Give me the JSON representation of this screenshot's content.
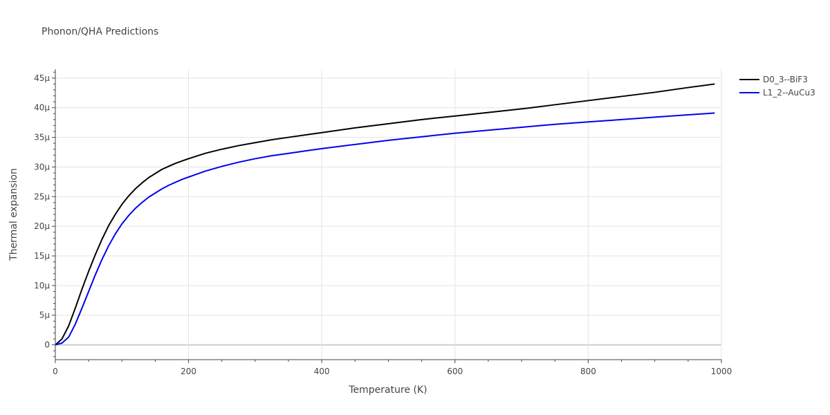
{
  "chart_data": {
    "type": "line",
    "title": "Phonon/QHA Predictions",
    "xlabel": "Temperature (K)",
    "ylabel": "Thermal expansion",
    "xlim": [
      0,
      1000
    ],
    "ylim": [
      -2.5e-06,
      4.65e-05
    ],
    "x_ticks": [
      0,
      200,
      400,
      600,
      800,
      1000
    ],
    "x_tick_labels": [
      "0",
      "200",
      "400",
      "600",
      "800",
      "1000"
    ],
    "y_ticks": [
      0,
      5e-06,
      1e-05,
      1.5e-05,
      2e-05,
      2.5e-05,
      3e-05,
      3.5e-05,
      4e-05,
      4.5e-05
    ],
    "y_tick_labels": [
      "0",
      "5µ",
      "10µ",
      "15µ",
      "20µ",
      "25µ",
      "30µ",
      "35µ",
      "40µ",
      "45µ"
    ],
    "grid": true,
    "legend_position": "top-right",
    "series": [
      {
        "name": "D0_3--BiF3",
        "color": "#000000",
        "x": [
          0,
          10,
          20,
          30,
          40,
          50,
          60,
          70,
          80,
          90,
          100,
          110,
          120,
          130,
          140,
          150,
          160,
          170,
          180,
          190,
          200,
          225,
          250,
          275,
          300,
          325,
          350,
          375,
          400,
          450,
          500,
          550,
          600,
          650,
          700,
          750,
          800,
          850,
          900,
          950,
          990
        ],
        "y": [
          0,
          1e-06,
          3.2e-06,
          6.2e-06,
          9.4e-06,
          1.24e-05,
          1.52e-05,
          1.78e-05,
          2.01e-05,
          2.2e-05,
          2.37e-05,
          2.51e-05,
          2.63e-05,
          2.73e-05,
          2.82e-05,
          2.89e-05,
          2.96e-05,
          3.01e-05,
          3.06e-05,
          3.1e-05,
          3.14e-05,
          3.23e-05,
          3.3e-05,
          3.36e-05,
          3.41e-05,
          3.46e-05,
          3.5e-05,
          3.54e-05,
          3.58e-05,
          3.66e-05,
          3.73e-05,
          3.8e-05,
          3.86e-05,
          3.92e-05,
          3.98e-05,
          4.05e-05,
          4.12e-05,
          4.19e-05,
          4.26e-05,
          4.34e-05,
          4.4e-05
        ]
      },
      {
        "name": "L1_2--AuCu3",
        "color": "#0000ee",
        "x": [
          0,
          10,
          20,
          30,
          40,
          50,
          60,
          70,
          80,
          90,
          100,
          110,
          120,
          130,
          140,
          150,
          160,
          170,
          180,
          190,
          200,
          225,
          250,
          275,
          300,
          325,
          350,
          375,
          400,
          450,
          500,
          550,
          600,
          650,
          700,
          750,
          800,
          850,
          900,
          950,
          990
        ],
        "y": [
          0,
          3e-07,
          1.3e-06,
          3.5e-06,
          6.2e-06,
          9e-06,
          1.18e-05,
          1.44e-05,
          1.67e-05,
          1.87e-05,
          2.04e-05,
          2.18e-05,
          2.3e-05,
          2.4e-05,
          2.49e-05,
          2.56e-05,
          2.63e-05,
          2.69e-05,
          2.74e-05,
          2.79e-05,
          2.83e-05,
          2.93e-05,
          3.01e-05,
          3.08e-05,
          3.14e-05,
          3.19e-05,
          3.23e-05,
          3.27e-05,
          3.31e-05,
          3.38e-05,
          3.45e-05,
          3.51e-05,
          3.57e-05,
          3.62e-05,
          3.67e-05,
          3.72e-05,
          3.76e-05,
          3.8e-05,
          3.84e-05,
          3.88e-05,
          3.91e-05
        ]
      }
    ]
  }
}
